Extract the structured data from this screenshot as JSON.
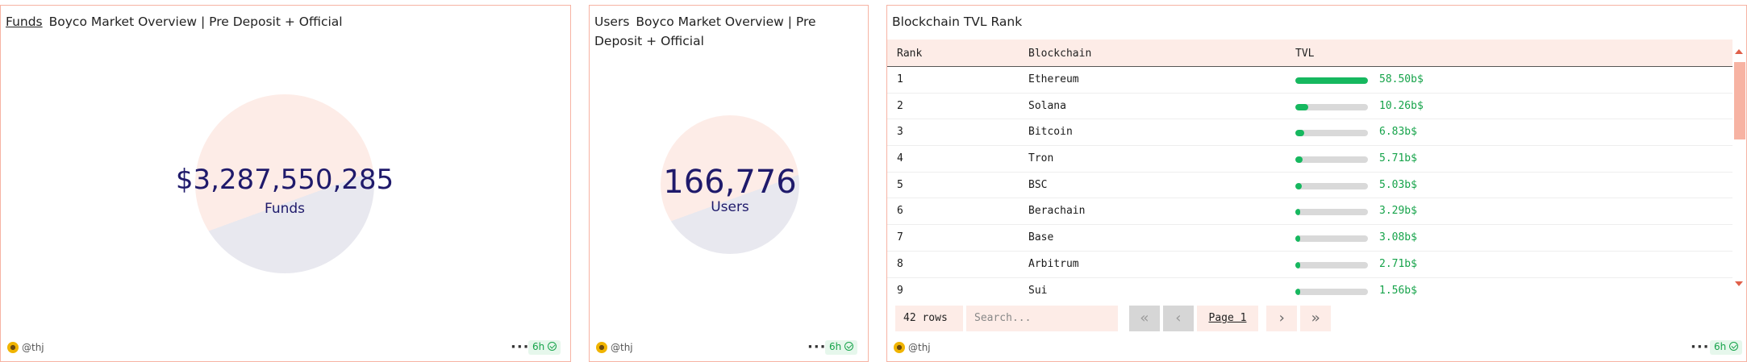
{
  "funds_panel": {
    "kind_label": "Funds",
    "title": "Boyco Market Overview | Pre Deposit + Official",
    "value": "$3,287,550,285",
    "label": "Funds",
    "author": "@thj",
    "menu_icon": "more-dots-icon",
    "freshness": "6h"
  },
  "users_panel": {
    "kind_label": "Users",
    "title": "Boyco Market Overview | Pre Deposit + Official",
    "value": "166,776",
    "label": "Users",
    "author": "@thj",
    "menu_icon": "more-dots-icon",
    "freshness": "6h"
  },
  "tvl_panel": {
    "title": "Blockchain TVL Rank",
    "columns": [
      "Rank",
      "Blockchain",
      "TVL"
    ],
    "rows": [
      {
        "rank": "1",
        "chain": "Ethereum",
        "tvl": "58.50b$",
        "share": 1.0
      },
      {
        "rank": "2",
        "chain": "Solana",
        "tvl": "10.26b$",
        "share": 0.175
      },
      {
        "rank": "3",
        "chain": "Bitcoin",
        "tvl": "6.83b$",
        "share": 0.117
      },
      {
        "rank": "4",
        "chain": "Tron",
        "tvl": "5.71b$",
        "share": 0.098
      },
      {
        "rank": "5",
        "chain": "BSC",
        "tvl": "5.03b$",
        "share": 0.086
      },
      {
        "rank": "6",
        "chain": "Berachain",
        "tvl": "3.29b$",
        "share": 0.056
      },
      {
        "rank": "7",
        "chain": "Base",
        "tvl": "3.08b$",
        "share": 0.053
      },
      {
        "rank": "8",
        "chain": "Arbitrum",
        "tvl": "2.71b$",
        "share": 0.046
      },
      {
        "rank": "9",
        "chain": "Sui",
        "tvl": "1.56b$",
        "share": 0.027
      }
    ],
    "row_count": "42 rows",
    "search_placeholder": "Search...",
    "page_label": "Page 1",
    "author": "@thj",
    "freshness": "6h"
  },
  "colors": {
    "border": "#f7b3a3",
    "ring_top": "#fdece7",
    "ring_bottom": "#e8e8ef",
    "number": "#1f1a6b",
    "bar_fill": "#16b85f",
    "value_green": "#16a34a"
  }
}
